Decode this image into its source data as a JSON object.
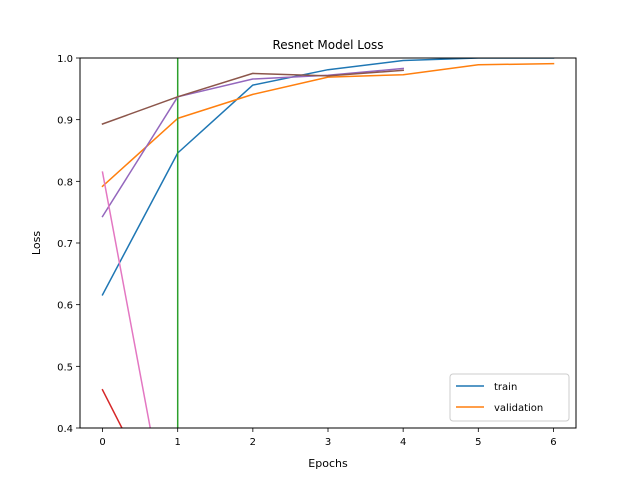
{
  "chart_data": {
    "type": "line",
    "title": "Resnet Model Loss",
    "xlabel": "Epochs",
    "ylabel": "Loss",
    "xlim": [
      -0.3,
      6.3
    ],
    "ylim": [
      0.4,
      1.0
    ],
    "x_ticks": [
      0,
      1,
      2,
      3,
      4,
      5,
      6
    ],
    "y_ticks": [
      0.4,
      0.5,
      0.6,
      0.7,
      0.8,
      0.9,
      1.0
    ],
    "x_tick_labels": [
      "0",
      "1",
      "2",
      "3",
      "4",
      "5",
      "6"
    ],
    "y_tick_labels": [
      "0.4",
      "0.5",
      "0.6",
      "0.7",
      "0.8",
      "0.9",
      "1.0"
    ],
    "grid": false,
    "legend_position": "bottom-right",
    "series": [
      {
        "name": "train",
        "color": "#1f77b4",
        "x": [
          0,
          1,
          2,
          3,
          4,
          5,
          6
        ],
        "y": [
          0.616,
          0.846,
          0.956,
          0.981,
          0.996,
          1.0,
          1.0
        ]
      },
      {
        "name": "validation",
        "color": "#ff7f0e",
        "x": [
          0,
          1,
          2,
          3,
          4,
          5,
          6
        ],
        "y": [
          0.792,
          0.902,
          0.941,
          0.969,
          0.973,
          0.989,
          0.991
        ]
      },
      {
        "color": "#2ca02c",
        "x": [
          1,
          1
        ],
        "y": [
          0.4,
          1.0
        ]
      },
      {
        "color": "#d62728",
        "x": [
          0,
          0.3
        ],
        "y": [
          0.462,
          0.39
        ]
      },
      {
        "color": "#9467bd",
        "x": [
          0,
          1,
          2,
          3,
          4
        ],
        "y": [
          0.743,
          0.937,
          0.966,
          0.972,
          0.983
        ]
      },
      {
        "color": "#8c564b",
        "x": [
          0,
          1,
          2,
          3,
          4
        ],
        "y": [
          0.893,
          0.937,
          0.975,
          0.971,
          0.98
        ]
      },
      {
        "color": "#e377c2",
        "x": [
          0,
          0.65
        ],
        "y": [
          0.815,
          0.39
        ]
      }
    ]
  }
}
